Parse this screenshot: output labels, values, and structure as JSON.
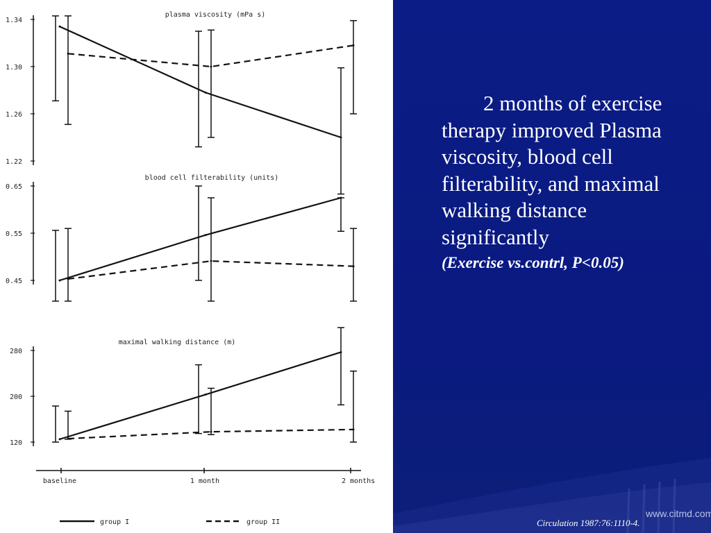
{
  "slide": {
    "text_main": "2 months of exercise therapy improved Plasma viscosity, blood cell filterability, and maximal walking distance significantly",
    "text_note": "(Exercise vs.contrl, P<0.05)",
    "citation": "Circulation 1987:76:1110-4.",
    "watermark": "www.citmd.com"
  },
  "colors": {
    "background": "#0a1a82",
    "text": "#ffffff",
    "chart_ink": "#111111"
  },
  "chart_data": [
    {
      "type": "line",
      "title": "plasma viscosity (mPa s)",
      "x": [
        "baseline",
        "1 month",
        "2 months"
      ],
      "yticks": [
        "1.34",
        "1.30",
        "1.26",
        "1.22"
      ],
      "ylim": [
        1.22,
        1.34
      ],
      "series": [
        {
          "name": "group I",
          "style": "solid",
          "values": [
            1.334,
            1.278,
            1.24
          ],
          "err_low": [
            1.271,
            1.232,
            1.192
          ],
          "err_high": [
            1.343,
            1.33,
            1.299
          ]
        },
        {
          "name": "group II",
          "style": "dashed",
          "values": [
            1.311,
            1.3,
            1.318
          ],
          "err_low": [
            1.251,
            1.24,
            1.26
          ],
          "err_high": [
            1.343,
            1.331,
            1.339
          ]
        }
      ]
    },
    {
      "type": "line",
      "title": "blood cell filterability (units)",
      "x": [
        "baseline",
        "1 month",
        "2 months"
      ],
      "yticks": [
        "0.65",
        "0.55",
        "0.45"
      ],
      "ylim": [
        0.45,
        0.65
      ],
      "series": [
        {
          "name": "group I",
          "style": "solid",
          "values": [
            0.45,
            0.546,
            0.625
          ],
          "err_low": [
            0.406,
            0.45,
            0.554
          ],
          "err_high": [
            0.556,
            0.65,
            0.625
          ]
        },
        {
          "name": "group II",
          "style": "dashed",
          "values": [
            0.453,
            0.491,
            0.48
          ],
          "err_low": [
            0.406,
            0.406,
            0.406
          ],
          "err_high": [
            0.56,
            0.625,
            0.56
          ]
        }
      ]
    },
    {
      "type": "line",
      "title": "maximal walking distance (m)",
      "x": [
        "baseline",
        "1 month",
        "2 months"
      ],
      "yticks": [
        "280",
        "200",
        "120"
      ],
      "ylim": [
        120,
        280
      ],
      "series": [
        {
          "name": "group I",
          "style": "solid",
          "values": [
            125,
            203,
            277
          ],
          "err_low": [
            120,
            135,
            185
          ],
          "err_high": [
            183,
            255,
            320
          ]
        },
        {
          "name": "group II",
          "style": "dashed",
          "values": [
            126,
            138,
            142
          ],
          "err_low": [
            125,
            133,
            120
          ],
          "err_high": [
            174,
            214,
            244
          ]
        }
      ]
    }
  ],
  "legend": [
    {
      "name": "group I",
      "style": "solid"
    },
    {
      "name": "group II",
      "style": "dashed"
    }
  ]
}
